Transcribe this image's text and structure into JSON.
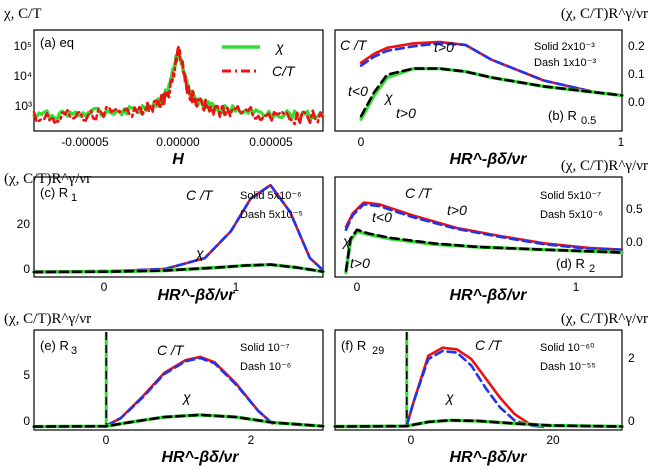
{
  "figure": {
    "panels": [
      {
        "id": "a",
        "label": "(a) eq",
        "xlabel": "H",
        "ylabel": "χ, C/T",
        "xticks": [
          "-0.00005",
          "0.00000",
          "0.00005"
        ],
        "yticks": [
          "10³",
          "10⁴",
          "10⁵"
        ],
        "legend": [
          "χ",
          "C/T"
        ]
      },
      {
        "id": "b",
        "label": "(b) R",
        "label_sub": "0.5",
        "xlabel": "HR^-βδ/νr",
        "ylabel": "(χ, C/T)R^γ/νr",
        "xticks": [
          "0",
          "1"
        ],
        "yticks": [
          "0.0",
          "0.1",
          "0.2"
        ],
        "solid": "Solid 2x10⁻³",
        "dash": "Dash 1x10⁻³",
        "annotations": [
          "C /T",
          "t>0",
          "t<0",
          "χ",
          "t>0"
        ]
      },
      {
        "id": "c",
        "label": "(c) R",
        "label_sub": "1",
        "xlabel": "HR^-βδ/νr",
        "ylabel": "(χ, C/T)R^γ/νr",
        "xticks": [
          "0",
          "1"
        ],
        "yticks": [
          "0",
          "20"
        ],
        "solid": "Solid 5x10⁻⁶",
        "dash": "Dash 5x10⁻⁵",
        "annotations": [
          "C /T",
          "χ"
        ]
      },
      {
        "id": "d",
        "label": "(d) R",
        "label_sub": "2",
        "xlabel": "HR^-βδ/νr",
        "ylabel": "(χ, C/T)R^γ/νr",
        "xticks": [
          "0",
          "1"
        ],
        "yticks": [
          "0.0",
          "0.5"
        ],
        "solid": "Solid 5x10⁻⁷",
        "dash": "Dash 5x10⁻⁶",
        "annotations": [
          "C /T",
          "t<0",
          "t>0",
          "χ",
          "t>0"
        ]
      },
      {
        "id": "e",
        "label": "(e) R",
        "label_sub": "3",
        "xlabel": "HR^-βδ/νr",
        "ylabel": "(χ, C/T)R^γ/νr",
        "xticks": [
          "0",
          "2"
        ],
        "yticks": [
          "0",
          "5"
        ],
        "solid": "Solid 10⁻⁷",
        "dash": "Dash 10⁻⁶",
        "annotations": [
          "C /T",
          "χ"
        ]
      },
      {
        "id": "f",
        "label": "(f) R",
        "label_sub": "29",
        "xlabel": "HR^-βδ/νr",
        "ylabel": "(χ, C/T)R^γ/νr",
        "xticks": [
          "0",
          "20"
        ],
        "yticks": [
          "0",
          "2"
        ],
        "solid": "Solid 10⁻⁶⁰",
        "dash": "Dash 10⁻⁵⁵",
        "annotations": [
          "C /T",
          "χ"
        ]
      }
    ],
    "colors": {
      "chi_solid": "#33dd33",
      "chi_dash": "#000000",
      "ct_solid": "#ee1111",
      "ct_dash": "#2233ee",
      "eq_ct": "#ee1111",
      "eq_chi": "#33dd33"
    }
  },
  "chart_data": [
    {
      "type": "line",
      "panel": "a",
      "x_range": [
        -8e-05,
        8e-05
      ],
      "y_scale": "log",
      "y_range": [
        300,
        200000
      ],
      "series": [
        {
          "name": "χ",
          "style": "solid",
          "x": [
            -8e-05,
            -6e-05,
            -4e-05,
            -2e-05,
            -1e-05,
            -5e-06,
            0,
            5e-06,
            1e-05,
            2e-05,
            4e-05,
            6e-05,
            8e-05
          ],
          "y": [
            800,
            900,
            1000,
            1300,
            2000,
            5000,
            60000,
            5000,
            2000,
            1300,
            1000,
            900,
            800
          ]
        },
        {
          "name": "C/T",
          "style": "dash-dot",
          "x": [
            -8e-05,
            -6e-05,
            -4e-05,
            -2e-05,
            -1e-05,
            -5e-06,
            0,
            5e-06,
            1e-05,
            2e-05,
            4e-05,
            6e-05,
            8e-05
          ],
          "y": [
            700,
            750,
            900,
            1200,
            1800,
            4000,
            50000,
            4000,
            1800,
            1200,
            900,
            750,
            700
          ]
        }
      ]
    },
    {
      "type": "line",
      "panel": "b",
      "x_range": [
        -0.1,
        1.0
      ],
      "y_range": [
        -0.02,
        0.32
      ],
      "series": [
        {
          "name": "C/T Solid",
          "x": [
            0.0,
            0.05,
            0.1,
            0.2,
            0.3,
            0.4,
            0.5,
            0.7,
            0.9,
            1.0
          ],
          "y": [
            0.21,
            0.24,
            0.26,
            0.275,
            0.28,
            0.27,
            0.22,
            0.15,
            0.11,
            0.1
          ]
        },
        {
          "name": "C/T Dash",
          "x": [
            0.0,
            0.05,
            0.1,
            0.2,
            0.3,
            0.4,
            0.5,
            0.7,
            0.9,
            1.0
          ],
          "y": [
            0.2,
            0.23,
            0.25,
            0.265,
            0.275,
            0.27,
            0.22,
            0.15,
            0.11,
            0.1
          ]
        },
        {
          "name": "χ Solid",
          "x": [
            0.0,
            0.05,
            0.1,
            0.2,
            0.3,
            0.4,
            0.5,
            0.7,
            0.9,
            1.0
          ],
          "y": [
            0.02,
            0.1,
            0.16,
            0.19,
            0.19,
            0.18,
            0.16,
            0.13,
            0.11,
            0.1
          ]
        },
        {
          "name": "χ Dash",
          "x": [
            0.0,
            0.05,
            0.1,
            0.2,
            0.3,
            0.4,
            0.5,
            0.7,
            0.9,
            1.0
          ],
          "y": [
            0.03,
            0.11,
            0.17,
            0.19,
            0.19,
            0.18,
            0.16,
            0.13,
            0.11,
            0.1
          ]
        }
      ]
    },
    {
      "type": "line",
      "panel": "c",
      "x_range": [
        -0.6,
        1.6
      ],
      "y_range": [
        -1,
        36
      ],
      "series": [
        {
          "name": "C/T Solid",
          "x": [
            -0.6,
            0.0,
            0.4,
            0.7,
            0.9,
            1.05,
            1.2,
            1.35,
            1.5,
            1.6
          ],
          "y": [
            1,
            1.2,
            2,
            6,
            16,
            28,
            33,
            23,
            6,
            1.5
          ]
        },
        {
          "name": "C/T Dash",
          "x": [
            -0.6,
            0.0,
            0.4,
            0.7,
            0.9,
            1.05,
            1.2,
            1.35,
            1.5,
            1.6
          ],
          "y": [
            1,
            1.2,
            2,
            6,
            16,
            28,
            33,
            23,
            6,
            1.5
          ]
        },
        {
          "name": "χ Solid",
          "x": [
            -0.6,
            0.0,
            0.4,
            0.8,
            1.0,
            1.2,
            1.4,
            1.6
          ],
          "y": [
            0.8,
            1,
            1.4,
            2.5,
            3.2,
            3.6,
            2.5,
            1
          ]
        },
        {
          "name": "χ Dash",
          "x": [
            -0.6,
            0.0,
            0.4,
            0.8,
            1.0,
            1.2,
            1.4,
            1.6
          ],
          "y": [
            0.8,
            1,
            1.4,
            2.5,
            3.2,
            3.6,
            2.5,
            1
          ]
        }
      ]
    },
    {
      "type": "line",
      "panel": "d",
      "x_range": [
        -0.05,
        1.25
      ],
      "y_range": [
        -0.2,
        0.9
      ],
      "series": [
        {
          "name": "C/T Solid",
          "x": [
            0.0,
            0.03,
            0.08,
            0.15,
            0.3,
            0.5,
            0.7,
            0.9,
            1.1,
            1.25
          ],
          "y": [
            0.35,
            0.5,
            0.62,
            0.6,
            0.48,
            0.34,
            0.25,
            0.17,
            0.12,
            0.1
          ]
        },
        {
          "name": "C/T Dash",
          "x": [
            0.0,
            0.03,
            0.08,
            0.15,
            0.3,
            0.5,
            0.7,
            0.9,
            1.1,
            1.25
          ],
          "y": [
            0.32,
            0.48,
            0.6,
            0.58,
            0.46,
            0.33,
            0.24,
            0.16,
            0.11,
            0.1
          ]
        },
        {
          "name": "χ Solid",
          "x": [
            0.0,
            0.02,
            0.05,
            0.1,
            0.2,
            0.4,
            0.6,
            0.9,
            1.25
          ],
          "y": [
            -0.15,
            0.2,
            0.3,
            0.27,
            0.22,
            0.16,
            0.13,
            0.1,
            0.07
          ]
        },
        {
          "name": "χ Dash",
          "x": [
            0.0,
            0.02,
            0.05,
            0.1,
            0.2,
            0.4,
            0.6,
            0.9,
            1.25
          ],
          "y": [
            -0.13,
            0.22,
            0.32,
            0.28,
            0.23,
            0.17,
            0.13,
            0.1,
            0.07
          ]
        }
      ]
    },
    {
      "type": "line",
      "panel": "e",
      "x_range": [
        -1.0,
        3.0
      ],
      "y_range": [
        -0.3,
        9
      ],
      "series": [
        {
          "name": "C/T Solid",
          "x": [
            0.0,
            0.2,
            0.5,
            0.8,
            1.1,
            1.3,
            1.5,
            1.8,
            2.1,
            2.3
          ],
          "y": [
            0.1,
            0.8,
            2.8,
            5.0,
            6.2,
            6.5,
            6.0,
            4.0,
            1.5,
            0.3
          ]
        },
        {
          "name": "C/T Dash",
          "x": [
            0.0,
            0.2,
            0.5,
            0.8,
            1.1,
            1.3,
            1.5,
            1.8,
            2.1,
            2.3
          ],
          "y": [
            0.1,
            0.8,
            2.7,
            4.9,
            6.1,
            6.4,
            5.9,
            3.9,
            1.5,
            0.3
          ]
        },
        {
          "name": "χ Solid",
          "x": [
            -1.0,
            0.0,
            0.4,
            0.8,
            1.3,
            1.8,
            2.3,
            3.0
          ],
          "y": [
            0.02,
            0.05,
            0.5,
            0.9,
            1.1,
            0.9,
            0.4,
            0.05
          ]
        },
        {
          "name": "χ Dash",
          "x": [
            -1.0,
            0.0,
            0.4,
            0.8,
            1.3,
            1.8,
            2.3,
            3.0
          ],
          "y": [
            0.02,
            0.05,
            0.5,
            0.9,
            1.1,
            0.9,
            0.4,
            0.05
          ]
        }
      ]
    },
    {
      "type": "line",
      "panel": "f",
      "x_range": [
        -10,
        30
      ],
      "y_range": [
        -0.1,
        3.0
      ],
      "series": [
        {
          "name": "C/T Solid",
          "x": [
            0,
            1,
            3,
            5,
            7,
            9,
            11,
            13,
            15,
            17,
            19
          ],
          "y": [
            0.05,
            0.8,
            2.2,
            2.45,
            2.4,
            2.1,
            1.5,
            0.9,
            0.4,
            0.1,
            0.0
          ]
        },
        {
          "name": "C/T Dash",
          "x": [
            0,
            1,
            3,
            5,
            7,
            9,
            11,
            13,
            15,
            17,
            19
          ],
          "y": [
            0.05,
            0.8,
            2.1,
            2.35,
            2.3,
            1.9,
            1.2,
            0.6,
            0.2,
            0.05,
            0.0
          ]
        },
        {
          "name": "χ Solid",
          "x": [
            -10,
            0,
            3,
            6,
            10,
            15,
            20,
            30
          ],
          "y": [
            0.01,
            0.02,
            0.15,
            0.2,
            0.18,
            0.1,
            0.04,
            0.01
          ]
        },
        {
          "name": "χ Dash",
          "x": [
            -10,
            0,
            3,
            6,
            10,
            15,
            20,
            30
          ],
          "y": [
            0.01,
            0.02,
            0.15,
            0.2,
            0.18,
            0.1,
            0.04,
            0.01
          ]
        }
      ]
    }
  ]
}
